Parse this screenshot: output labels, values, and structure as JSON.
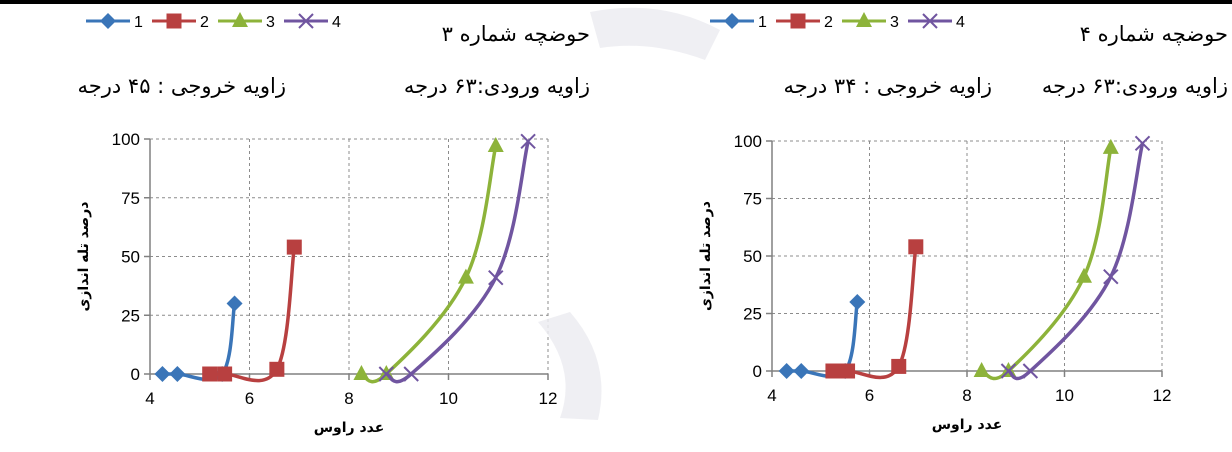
{
  "legend": {
    "entries": [
      {
        "label": "1",
        "color": "#3a75b8",
        "marker": "diamond"
      },
      {
        "label": "2",
        "color": "#b84040",
        "marker": "square"
      },
      {
        "label": "3",
        "color": "#8db33a",
        "marker": "triangle"
      },
      {
        "label": "4",
        "color": "#7055a0",
        "marker": "x"
      }
    ]
  },
  "charts": [
    {
      "title": "حوضچه شماره ۳",
      "inlet_angle": "زاویه ورودی:۶۳ درجه",
      "outlet_angle": "زاویه خروجی : ۴۵ درجه"
    },
    {
      "title": "حوضچه شماره ۴",
      "inlet_angle": "زاویه ورودی:۶۳ درجه",
      "outlet_angle": "زاویه خروجی : ۳۴ درجه"
    }
  ],
  "chart_data": [
    {
      "type": "line",
      "xlabel": "عدد راوس",
      "ylabel": "درصد تله اندازی",
      "xlim": [
        4,
        12
      ],
      "ylim": [
        0,
        100
      ],
      "xticks": [
        "4",
        "6",
        "8",
        "10",
        "12"
      ],
      "yticks": [
        "0",
        "25",
        "50",
        "75",
        "100"
      ],
      "grid": true,
      "legend_position": "top-left",
      "series": [
        {
          "name": "1",
          "x": [
            4.25,
            4.55,
            5.45,
            5.7
          ],
          "y": [
            0,
            0,
            0,
            30
          ]
        },
        {
          "name": "2",
          "x": [
            5.2,
            5.5,
            6.55,
            6.9
          ],
          "y": [
            0,
            0,
            2,
            54
          ]
        },
        {
          "name": "3",
          "x": [
            8.25,
            8.75,
            10.35,
            10.95
          ],
          "y": [
            0,
            0,
            41,
            97
          ]
        },
        {
          "name": "4",
          "x": [
            8.75,
            9.25,
            10.95,
            11.6
          ],
          "y": [
            0,
            0,
            41,
            99
          ]
        }
      ]
    },
    {
      "type": "line",
      "xlabel": "عدد راوس",
      "ylabel": "درصد تله اندازی",
      "xlim": [
        4,
        12
      ],
      "ylim": [
        0,
        100
      ],
      "xticks": [
        "4",
        "6",
        "8",
        "10",
        "12"
      ],
      "yticks": [
        "0",
        "25",
        "50",
        "75",
        "100"
      ],
      "grid": true,
      "legend_position": "top-left",
      "series": [
        {
          "name": "1",
          "x": [
            4.3,
            4.6,
            5.5,
            5.75
          ],
          "y": [
            0,
            0,
            0,
            30
          ]
        },
        {
          "name": "2",
          "x": [
            5.25,
            5.55,
            6.6,
            6.95
          ],
          "y": [
            0,
            0,
            2,
            54
          ]
        },
        {
          "name": "3",
          "x": [
            8.3,
            8.85,
            10.4,
            10.95
          ],
          "y": [
            0,
            0,
            41,
            97
          ]
        },
        {
          "name": "4",
          "x": [
            8.85,
            9.3,
            10.95,
            11.6
          ],
          "y": [
            0,
            0,
            41,
            99
          ]
        }
      ]
    }
  ]
}
